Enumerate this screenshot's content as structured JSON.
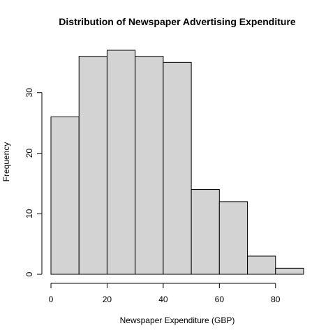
{
  "chart_data": {
    "type": "bar",
    "title": "Distribution of Newspaper Advertising Expenditure",
    "xlabel": "Newspaper Expenditure (GBP)",
    "ylabel": "Frequency",
    "bins": [
      {
        "from": 0,
        "to": 10,
        "count": 26
      },
      {
        "from": 10,
        "to": 20,
        "count": 36
      },
      {
        "from": 20,
        "to": 30,
        "count": 37
      },
      {
        "from": 30,
        "to": 40,
        "count": 36
      },
      {
        "from": 40,
        "to": 50,
        "count": 35
      },
      {
        "from": 50,
        "to": 60,
        "count": 14
      },
      {
        "from": 60,
        "to": 70,
        "count": 12
      },
      {
        "from": 70,
        "to": 80,
        "count": 3
      },
      {
        "from": 80,
        "to": 90,
        "count": 1
      }
    ],
    "x_ticks": [
      0,
      20,
      40,
      60,
      80
    ],
    "y_ticks": [
      0,
      10,
      20,
      30
    ],
    "xlim": [
      0,
      90
    ],
    "ylim": [
      0,
      37
    ],
    "grid": false,
    "colors": {
      "bar_fill": "#d3d3d3",
      "bar_stroke": "#000000"
    }
  }
}
